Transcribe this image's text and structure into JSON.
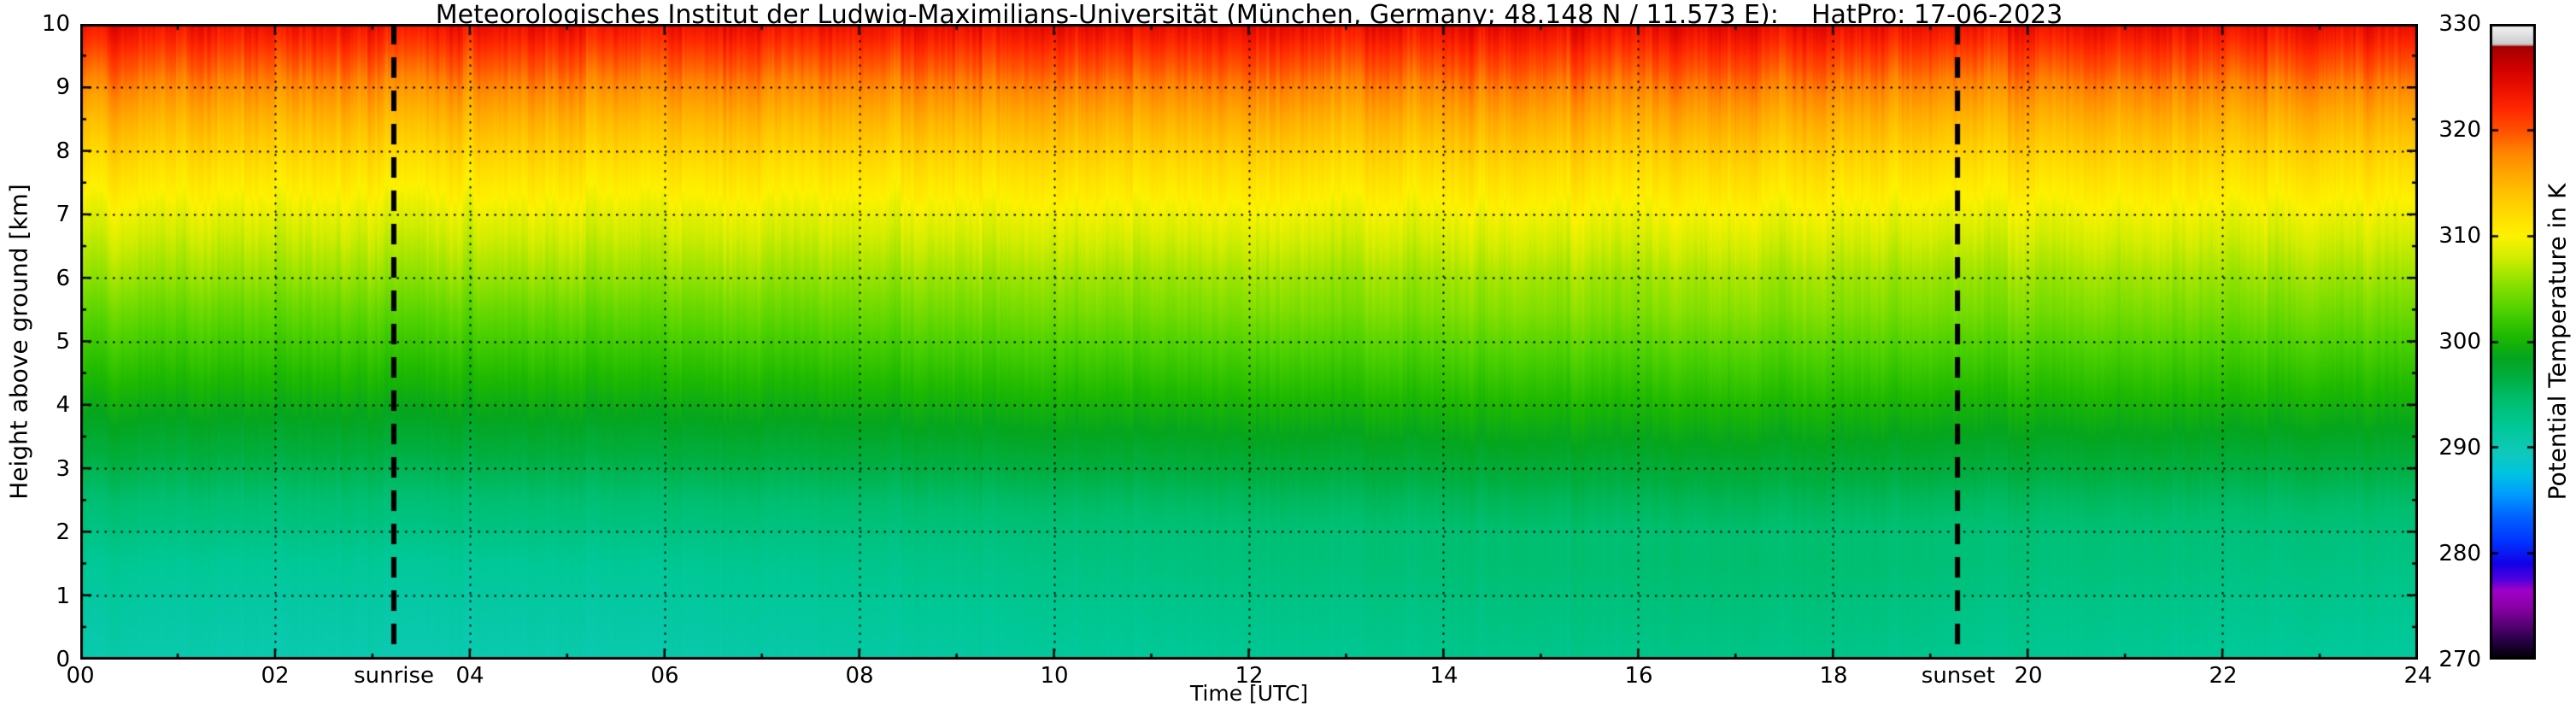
{
  "page": {
    "background": "#ffffff"
  },
  "chart_data": {
    "type": "heatmap",
    "title": "Meteorologisches Institut der Ludwig-Maximilians-Universität (München, Germany; 48.148 N / 11.573 E):    HatPro: 17-06-2023",
    "xlabel": "Time [UTC]",
    "ylabel": "Height above ground [km]",
    "x_range": [
      0,
      24
    ],
    "y_range": [
      0,
      10
    ],
    "x_tick_values": [
      0,
      2,
      4,
      6,
      8,
      10,
      12,
      14,
      16,
      18,
      20,
      22,
      24
    ],
    "x_tick_labels": [
      "00",
      "02",
      "04",
      "06",
      "08",
      "10",
      "12",
      "14",
      "16",
      "18",
      "20",
      "22",
      "24"
    ],
    "y_tick_values": [
      0,
      1,
      2,
      3,
      4,
      5,
      6,
      7,
      8,
      9,
      10
    ],
    "y_tick_labels": [
      "0",
      "1",
      "2",
      "3",
      "4",
      "5",
      "6",
      "7",
      "8",
      "9",
      "10"
    ],
    "grid": {
      "style": "dotted",
      "color": "#000000"
    },
    "frame_color": "#000000",
    "colorbar": {
      "label": "Potential Temperature in K",
      "range": [
        270,
        330
      ],
      "tick_values": [
        270,
        280,
        290,
        300,
        310,
        320,
        330
      ]
    },
    "annotations": [
      {
        "type": "vline",
        "x": 3.22,
        "label": "sunrise",
        "line_style": "dashed",
        "color": "#000000"
      },
      {
        "type": "vline",
        "x": 19.28,
        "label": "sunset",
        "line_style": "dashed",
        "color": "#000000"
      }
    ],
    "x": [
      0,
      2,
      4,
      6,
      8,
      10,
      12,
      14,
      16,
      18,
      20,
      22,
      24
    ],
    "y": [
      0,
      0.5,
      1,
      1.5,
      2,
      2.5,
      3,
      3.5,
      4,
      4.5,
      5,
      5.5,
      6,
      6.5,
      7,
      7.5,
      8,
      8.5,
      9,
      9.5,
      10
    ],
    "values": [
      [
        290.5,
        290.3,
        290.2,
        290.5,
        291.0,
        291.5,
        292.0,
        292.5,
        292.8,
        292.8,
        292.2,
        291.8,
        291.5
      ],
      [
        291.0,
        290.8,
        290.7,
        291.0,
        291.5,
        292.0,
        292.5,
        293.0,
        293.3,
        293.3,
        292.7,
        292.3,
        292.0
      ],
      [
        291.5,
        291.3,
        291.2,
        291.5,
        292.0,
        292.5,
        293.0,
        293.5,
        293.8,
        293.8,
        293.2,
        292.8,
        292.5
      ],
      [
        292.1,
        291.9,
        291.8,
        292.1,
        292.6,
        293.1,
        293.6,
        294.1,
        294.4,
        294.4,
        293.8,
        293.4,
        293.1
      ],
      [
        293.2,
        293.1,
        293.0,
        293.2,
        293.4,
        293.7,
        293.9,
        294.2,
        294.3,
        294.3,
        294.0,
        293.8,
        293.6
      ],
      [
        294.4,
        294.3,
        294.2,
        294.4,
        294.6,
        294.9,
        295.1,
        295.4,
        295.5,
        295.5,
        295.2,
        295.0,
        294.8
      ],
      [
        296.0,
        295.9,
        295.8,
        296.0,
        296.2,
        296.5,
        296.7,
        297.0,
        297.1,
        297.1,
        296.8,
        296.6,
        296.4
      ],
      [
        297.6,
        297.5,
        297.4,
        297.6,
        297.8,
        298.1,
        298.3,
        298.6,
        298.7,
        298.7,
        298.4,
        298.2,
        298.0
      ],
      [
        299.2,
        299.1,
        299.0,
        299.2,
        299.4,
        299.7,
        299.9,
        300.2,
        300.3,
        300.3,
        300.0,
        299.8,
        299.6
      ],
      [
        300.8,
        300.7,
        300.6,
        300.8,
        301.0,
        301.3,
        301.5,
        301.8,
        301.9,
        301.9,
        301.6,
        301.4,
        301.2
      ],
      [
        302.4,
        302.3,
        302.2,
        302.4,
        302.6,
        302.9,
        303.1,
        303.4,
        303.5,
        303.5,
        303.2,
        303.0,
        302.8
      ],
      [
        304.0,
        303.9,
        303.8,
        304.0,
        304.2,
        304.5,
        304.7,
        305.0,
        305.1,
        305.1,
        304.8,
        304.6,
        304.4
      ],
      [
        305.8,
        305.7,
        305.7,
        305.8,
        305.8,
        305.9,
        306.0,
        306.1,
        306.2,
        306.2,
        306.1,
        306.0,
        306.0
      ],
      [
        307.4,
        307.3,
        307.3,
        307.4,
        307.4,
        307.5,
        307.6,
        307.7,
        307.8,
        307.8,
        307.7,
        307.6,
        307.6
      ],
      [
        309.0,
        308.9,
        308.9,
        309.0,
        309.0,
        309.1,
        309.2,
        309.3,
        309.4,
        309.4,
        309.3,
        309.2,
        309.2
      ],
      [
        310.8,
        310.7,
        310.7,
        310.8,
        310.8,
        310.9,
        311.0,
        311.1,
        311.2,
        311.2,
        311.1,
        311.0,
        311.0
      ],
      [
        312.8,
        312.7,
        312.7,
        312.8,
        312.8,
        312.9,
        313.0,
        313.1,
        313.2,
        313.2,
        313.1,
        313.0,
        313.0
      ],
      [
        315.0,
        314.9,
        314.9,
        315.0,
        315.0,
        315.1,
        315.2,
        315.3,
        315.4,
        315.4,
        315.3,
        315.2,
        315.2
      ],
      [
        317.5,
        317.4,
        317.4,
        317.5,
        317.5,
        317.6,
        317.7,
        317.8,
        317.9,
        317.9,
        317.8,
        317.7,
        317.7
      ],
      [
        320.5,
        320.4,
        320.4,
        320.5,
        320.5,
        320.6,
        320.7,
        320.8,
        320.9,
        320.9,
        320.8,
        320.7,
        320.7
      ],
      [
        324.0,
        323.9,
        323.9,
        324.0,
        324.0,
        324.1,
        324.2,
        324.3,
        324.4,
        324.4,
        324.3,
        324.2,
        324.2
      ]
    ],
    "colormap_stops": [
      [
        270.0,
        "#000000"
      ],
      [
        271.5,
        "#20003c"
      ],
      [
        273.0,
        "#50006e"
      ],
      [
        275.0,
        "#8c00aa"
      ],
      [
        276.5,
        "#a000c8"
      ],
      [
        277.5,
        "#5000dc"
      ],
      [
        279.0,
        "#1400e6"
      ],
      [
        281.0,
        "#0032ff"
      ],
      [
        283.5,
        "#0064ff"
      ],
      [
        285.5,
        "#009bff"
      ],
      [
        287.5,
        "#00c3e1"
      ],
      [
        289.5,
        "#0fc9bb"
      ],
      [
        292.0,
        "#00c896"
      ],
      [
        294.5,
        "#00be6e"
      ],
      [
        296.5,
        "#00af41"
      ],
      [
        298.5,
        "#05a51e"
      ],
      [
        300.5,
        "#1eb900"
      ],
      [
        303.0,
        "#50d200"
      ],
      [
        305.5,
        "#8ce100"
      ],
      [
        308.0,
        "#d2ed00"
      ],
      [
        310.0,
        "#fdf200"
      ],
      [
        312.0,
        "#ffdc00"
      ],
      [
        314.0,
        "#ffc300"
      ],
      [
        316.0,
        "#ffa500"
      ],
      [
        318.0,
        "#ff8200"
      ],
      [
        320.0,
        "#ff5000"
      ],
      [
        322.0,
        "#ff2800"
      ],
      [
        324.0,
        "#eb0f00"
      ],
      [
        326.0,
        "#cd0000"
      ],
      [
        327.6,
        "#aa0000"
      ],
      [
        327.9,
        "#9b0000"
      ],
      [
        328.1,
        "#c8c8c8"
      ],
      [
        329.0,
        "#e1e1e1"
      ],
      [
        330.0,
        "#f5f5f5"
      ]
    ]
  }
}
